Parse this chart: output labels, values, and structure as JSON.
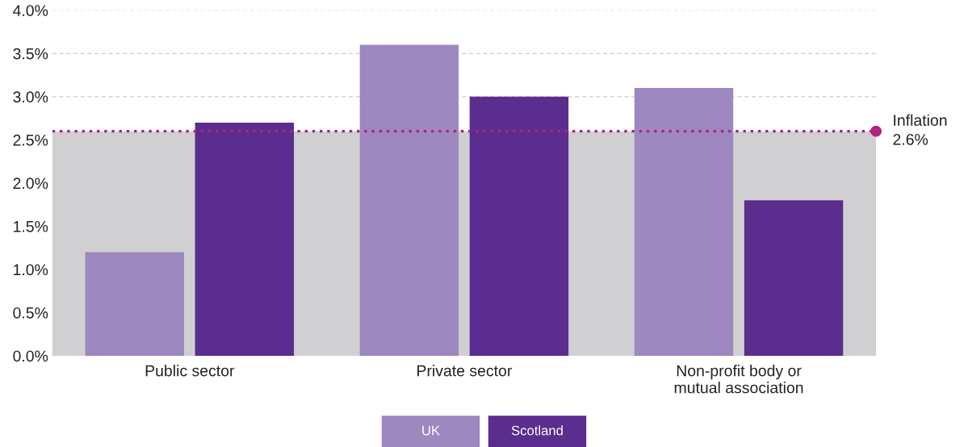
{
  "chart_data": {
    "type": "bar",
    "categories": [
      "Public sector",
      "Private sector",
      "Non-profit body or\nmutual association"
    ],
    "series": [
      {
        "name": "UK",
        "color": "#9e88c0",
        "values": [
          1.2,
          3.6,
          3.1
        ]
      },
      {
        "name": "Scotland",
        "color": "#5b2d8e",
        "values": [
          2.7,
          3.0,
          1.8
        ]
      }
    ],
    "ylim": [
      0,
      4.0
    ],
    "yticks": [
      {
        "value": 0,
        "label": "0.0%"
      },
      {
        "value": 0.5,
        "label": "0.5%"
      },
      {
        "value": 1.0,
        "label": "1.0%"
      },
      {
        "value": 1.5,
        "label": "1.5%"
      },
      {
        "value": 2.0,
        "label": "2.0%"
      },
      {
        "value": 2.5,
        "label": "2.5%"
      },
      {
        "value": 3.0,
        "label": "3.0%"
      },
      {
        "value": 3.5,
        "label": "3.5%"
      },
      {
        "value": 4.0,
        "label": "4.0%"
      }
    ],
    "grid": "y",
    "legend": "bottom",
    "bands": [
      {
        "axis": "y",
        "from": 0,
        "to": 2.6,
        "color": "#d0d0d2"
      }
    ],
    "ref_lines": [
      {
        "axis": "y",
        "value": 2.6,
        "label": "Inflation\n2.6%",
        "color": "#b0237f",
        "line_style": "dotted"
      }
    ]
  }
}
